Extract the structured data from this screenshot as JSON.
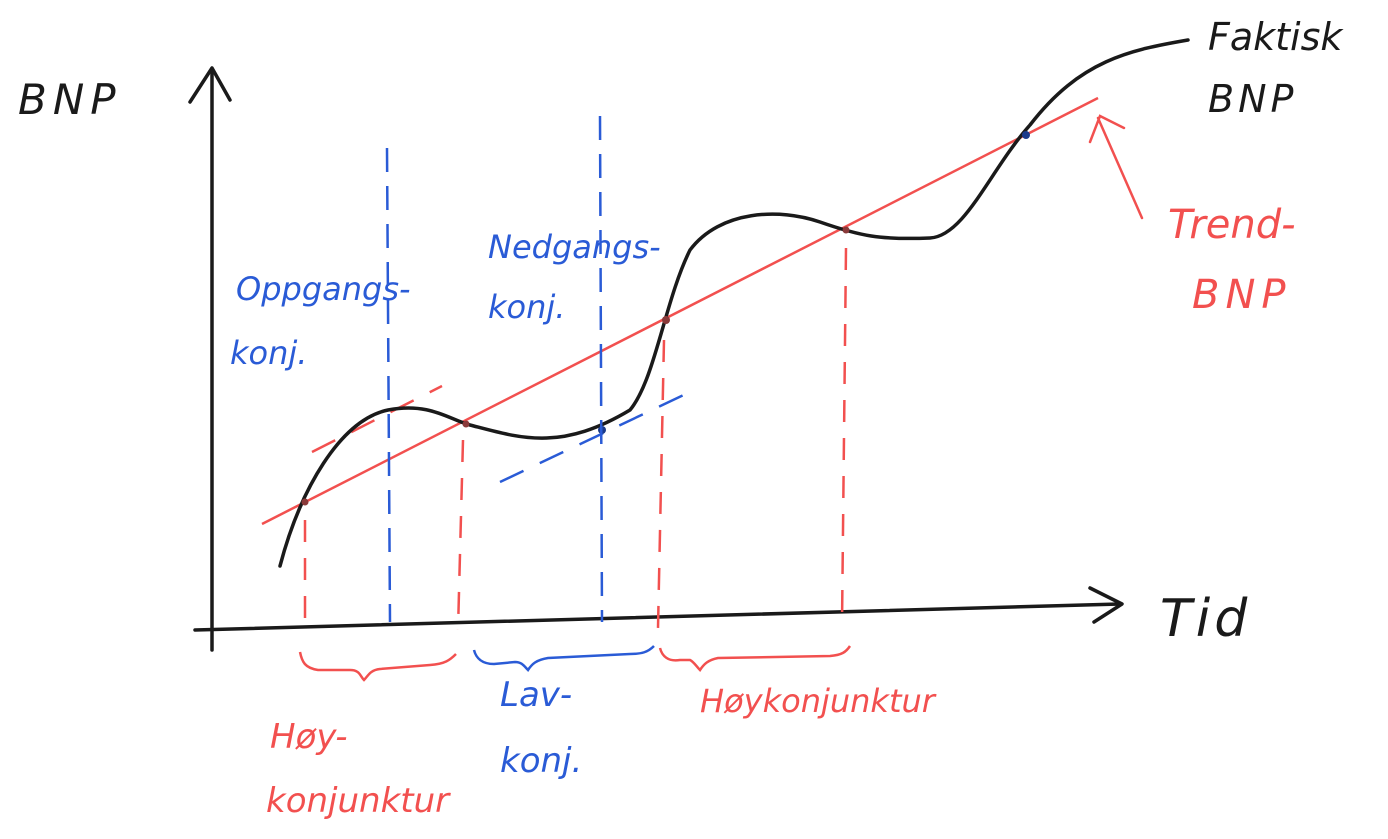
{
  "axes": {
    "y_label": "BNP",
    "x_label": "Tid"
  },
  "curves": {
    "actual_label_line1": "Faktisk",
    "actual_label_line2": "BNP",
    "trend_label_line1": "Trend-",
    "trend_label_line2": "BNP"
  },
  "annotations": {
    "upturn_line1": "Oppgangs-",
    "upturn_line2": "konj.",
    "downturn_line1": "Nedgangs-",
    "downturn_line2": "konj."
  },
  "phases": {
    "boom1_line1": "Høy-",
    "boom1_line2": "konjunktur",
    "low_line1": "Lav-",
    "low_line2": "konj.",
    "boom2": "Høykonjunktur"
  },
  "colors": {
    "black": "#1a1a1a",
    "blue": "#2a5bd6",
    "red": "#f2504f"
  }
}
